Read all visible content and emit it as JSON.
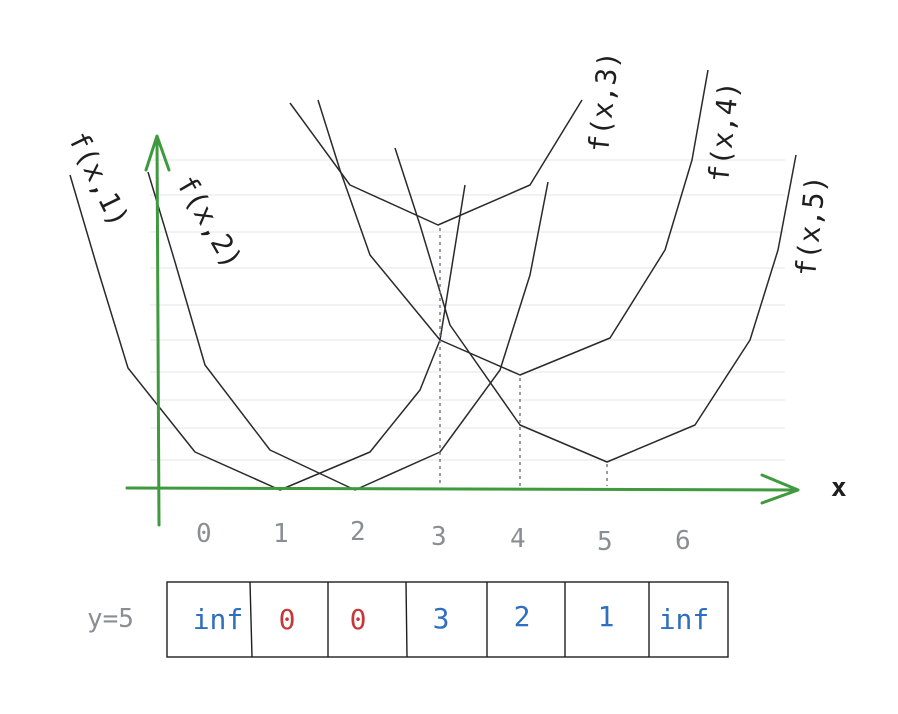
{
  "axis": {
    "x_label": "x",
    "ticks": [
      "0",
      "1",
      "2",
      "3",
      "4",
      "5",
      "6"
    ]
  },
  "curves": [
    {
      "label": "f(x,1)",
      "x": 1
    },
    {
      "label": "f(x,2)",
      "x": 2
    },
    {
      "label": "f(x,3)",
      "x": 3
    },
    {
      "label": "f(x,4)",
      "x": 4
    },
    {
      "label": "f(x,5)",
      "x": 5
    }
  ],
  "array": {
    "row_label": "y=5",
    "cells": [
      {
        "text": "inf",
        "color": "#2f6fbf"
      },
      {
        "text": "0",
        "color": "#c83737"
      },
      {
        "text": "0",
        "color": "#c83737"
      },
      {
        "text": "3",
        "color": "#2f6fbf"
      },
      {
        "text": "2",
        "color": "#2f6fbf"
      },
      {
        "text": "1",
        "color": "#2f6fbf"
      },
      {
        "text": "inf",
        "color": "#2f6fbf"
      }
    ]
  },
  "colors": {
    "axis": "#3f9a3f",
    "curve": "#2a2a2a",
    "grid": "#e9ebee",
    "dotted": "#6f7278"
  }
}
